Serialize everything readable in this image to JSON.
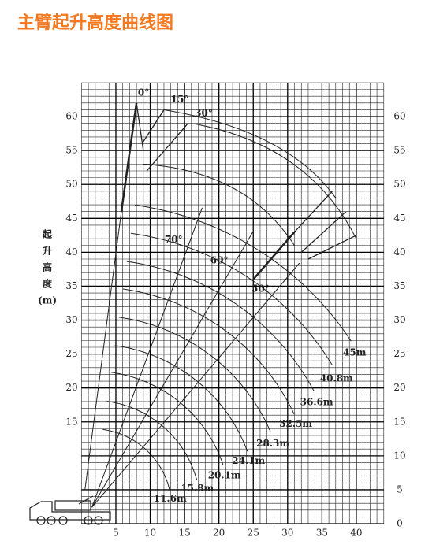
{
  "chart_data": {
    "type": "working-range",
    "title": "主臂起升高度曲线图",
    "ylabel": [
      "起",
      "升",
      "高",
      "度",
      "(m)"
    ],
    "xlim": [
      0,
      44
    ],
    "ylim": [
      0,
      65
    ],
    "xticks": [
      5,
      10,
      15,
      20,
      25,
      30,
      35,
      40
    ],
    "yticks": [
      0,
      5,
      10,
      15,
      20,
      25,
      30,
      35,
      40,
      45,
      50,
      55,
      60
    ],
    "grid": true,
    "pivot": [
      1.5,
      2.4
    ],
    "booms": [
      {
        "label": "11.6m",
        "value": 11.6
      },
      {
        "label": "15.8m",
        "value": 15.8
      },
      {
        "label": "20.1m",
        "value": 20.1
      },
      {
        "label": "24.1m",
        "value": 24.1
      },
      {
        "label": "28.3m",
        "value": 28.3
      },
      {
        "label": "32.5m",
        "value": 32.5
      },
      {
        "label": "36.6m",
        "value": 36.6
      },
      {
        "label": "40.8m",
        "value": 40.8
      },
      {
        "label": "45m",
        "value": 45
      }
    ],
    "angles": [
      {
        "label": "70°",
        "value": 70
      },
      {
        "label": "60°",
        "value": 60
      },
      {
        "label": "50°",
        "value": 50
      }
    ],
    "jib_angles": [
      "0°",
      "15°",
      "30°"
    ],
    "color": "#222222",
    "title_color": "#f47920"
  }
}
